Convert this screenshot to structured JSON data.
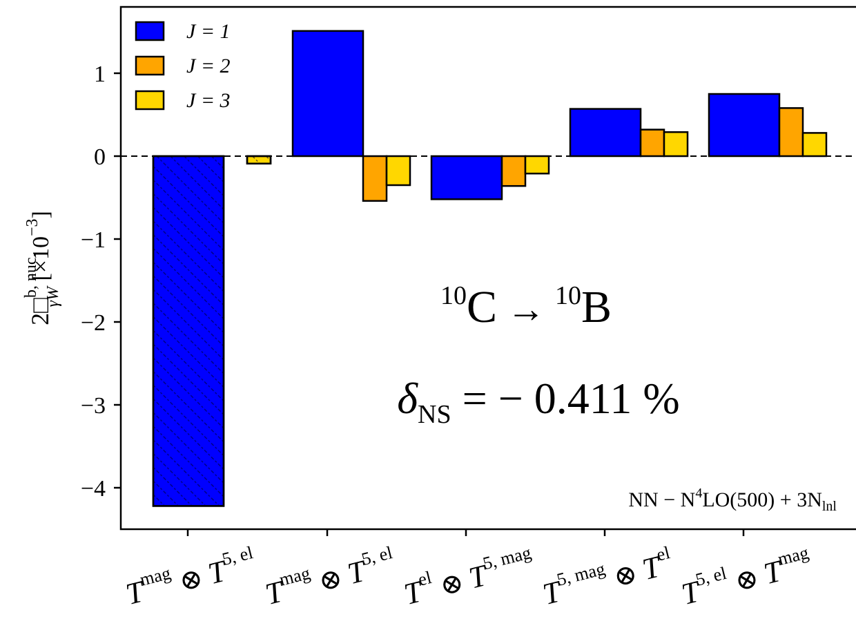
{
  "chart_data": {
    "type": "bar",
    "categories": [
      {
        "base": "T",
        "sup1": "mag",
        "op": "⊗",
        "base2": "T",
        "sup2": "5, el"
      },
      {
        "base": "T",
        "sup1": "mag",
        "op": "⊗",
        "base2": "T",
        "sup2": "5, el"
      },
      {
        "base": "T",
        "sup1": "el",
        "op": "⊗",
        "base2": "T",
        "sup2": "5, mag"
      },
      {
        "base": "T",
        "sup1": "5, mag",
        "op": "⊗",
        "base2": "T",
        "sup2": "el"
      },
      {
        "base": "T",
        "sup1": "5, el",
        "op": "⊗",
        "base2": "T",
        "sup2": "mag"
      }
    ],
    "series": [
      {
        "name": "J = 1",
        "color": "#0000ff",
        "values": [
          -4.22,
          1.51,
          -0.52,
          0.57,
          0.75
        ]
      },
      {
        "name": "J = 2",
        "color": "#ffa500",
        "values": [
          0.0,
          -0.54,
          -0.36,
          0.32,
          0.58
        ]
      },
      {
        "name": "J = 3",
        "color": "#ffd700",
        "values": [
          -0.09,
          -0.35,
          -0.21,
          0.29,
          0.28
        ]
      }
    ],
    "hatched_category_index": 0,
    "ylim": [
      -4.5,
      1.8
    ],
    "yticks": [
      -4,
      -3,
      -2,
      -1,
      0,
      1
    ],
    "ytick_labels": [
      "−4",
      "−3",
      "−2",
      "−1",
      "0",
      "1"
    ],
    "ylabel": {
      "main": "2□",
      "sup": "b, nuc.",
      "sub": "γW",
      "unit": "[×10",
      "unit_exp": "−3",
      "unit_close": "]"
    },
    "legend_placement": "top-left",
    "zero_line": "dashed",
    "annotations": {
      "reaction": {
        "m1": "10",
        "e1": "C",
        "arrow": "→",
        "m2": "10",
        "e2": "B"
      },
      "delta": {
        "sym": "δ",
        "sub": "NS",
        "eq": "= − 0.411 %"
      },
      "interaction": {
        "a": "NN − N",
        "sup": "4",
        "b": "LO(500) + 3N",
        "sub": "lnl"
      }
    }
  }
}
